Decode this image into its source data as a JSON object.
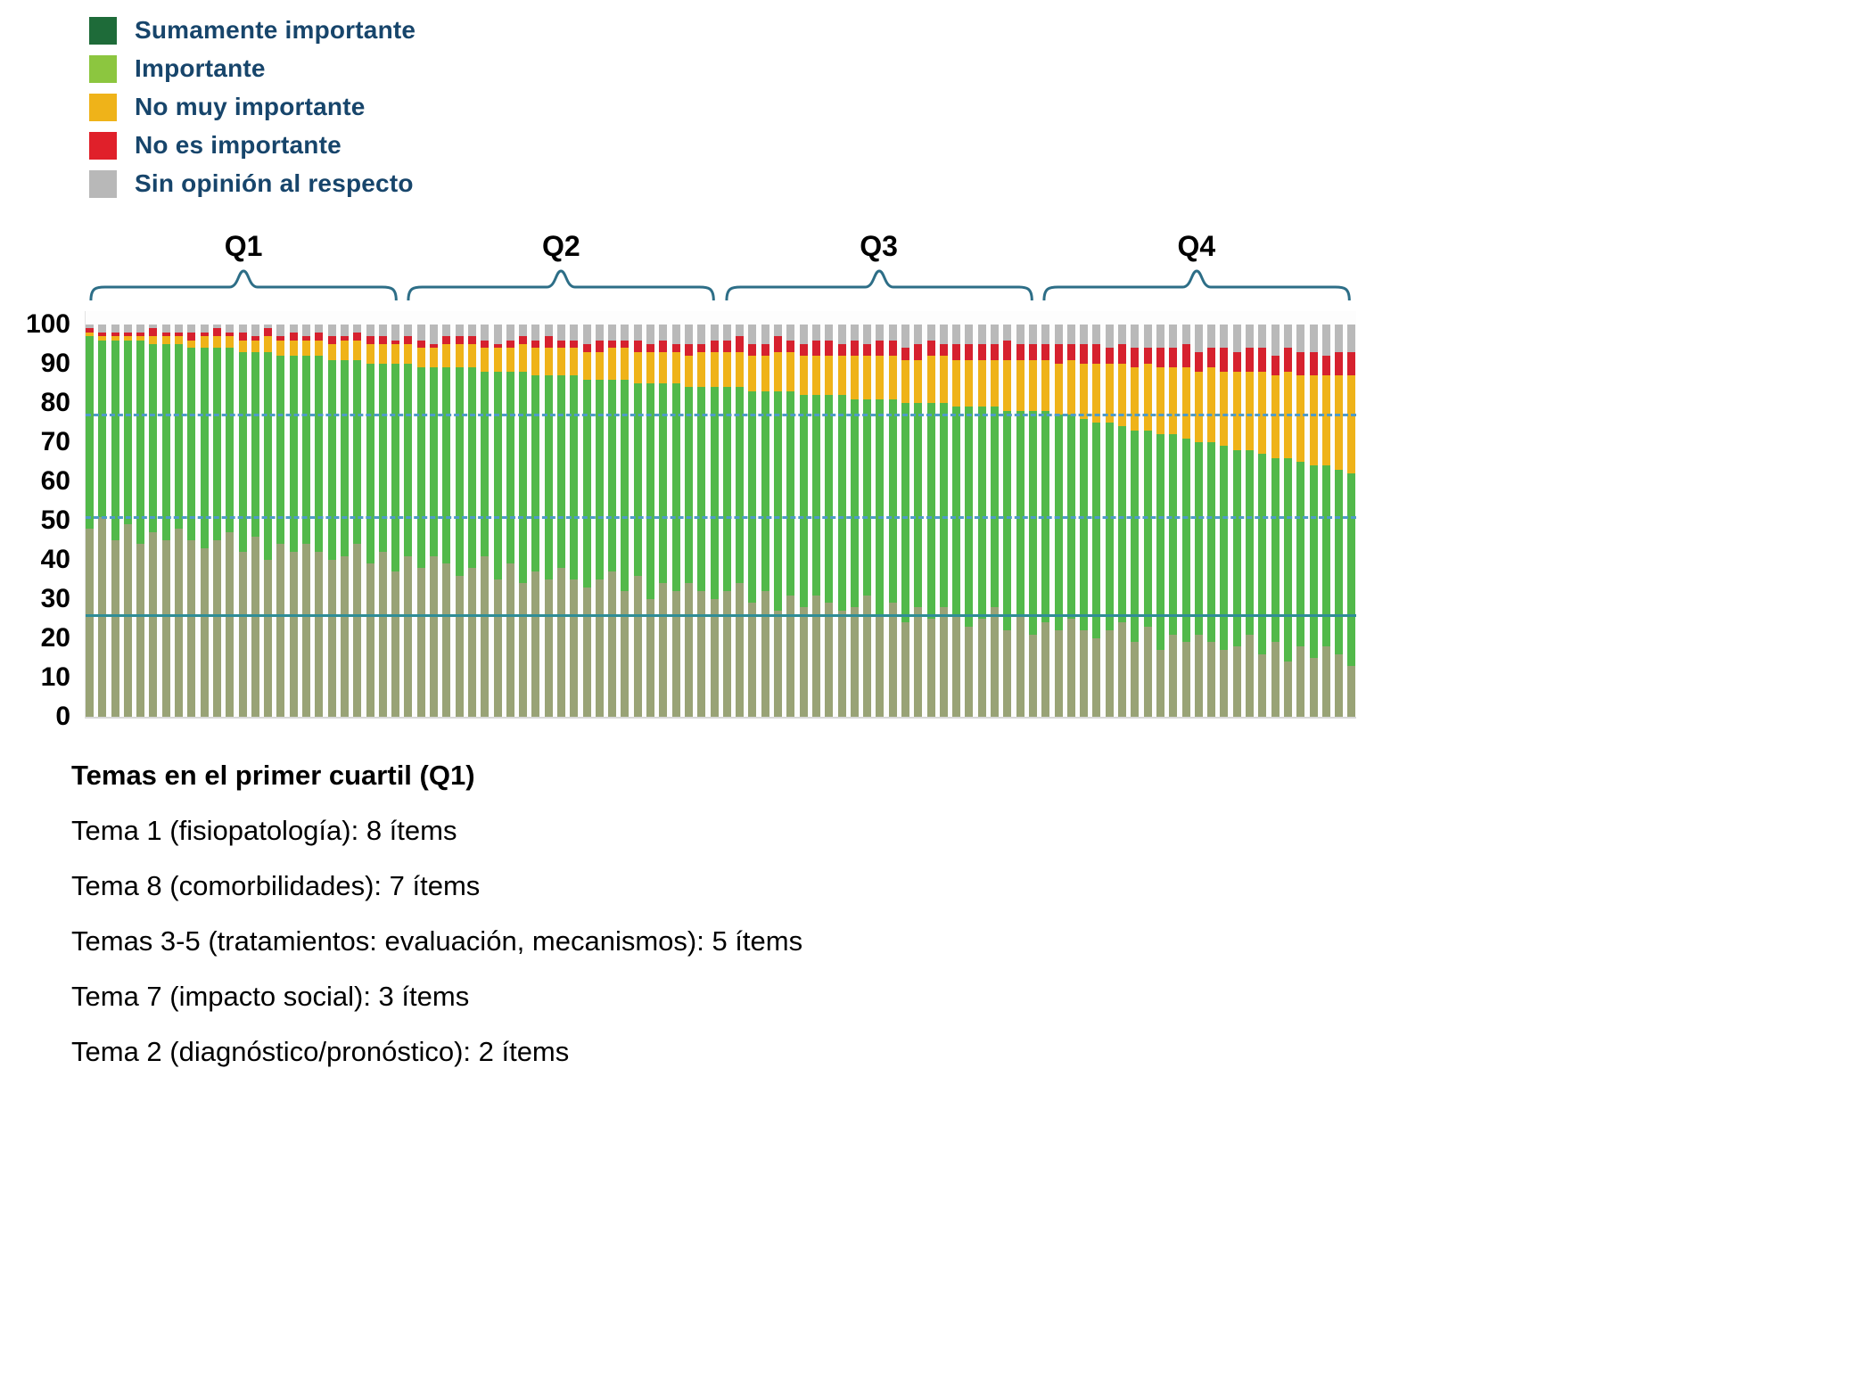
{
  "colors": {
    "legend_text": "#17456b",
    "bracket": "#2d6e87",
    "dashed_line": "#4f9bc8",
    "solid_line": "#2f8d96",
    "axis_text": "#000000"
  },
  "legend": {
    "items": [
      {
        "label": "Sumamente importante",
        "color": "#1e6b39"
      },
      {
        "label": "Importante",
        "color": "#8cc63f"
      },
      {
        "label": "No muy importante",
        "color": "#efb319"
      },
      {
        "label": "No es importante",
        "color": "#e0202a"
      },
      {
        "label": "Sin opinión al respecto",
        "color": "#b8b8b8"
      }
    ]
  },
  "chart_data": {
    "type": "bar",
    "stacked": true,
    "stack_total": 100,
    "n_items": 100,
    "items_per_quartile": 25,
    "quartiles": [
      {
        "label": "Q1"
      },
      {
        "label": "Q2"
      },
      {
        "label": "Q3"
      },
      {
        "label": "Q4"
      }
    ],
    "y_ticks": [
      0,
      10,
      20,
      30,
      40,
      50,
      60,
      70,
      80,
      90,
      100
    ],
    "ylim": [
      0,
      100
    ],
    "xlabel": "",
    "ylabel": "",
    "legend_position": "top-left",
    "reference_lines": [
      {
        "value": 76.5,
        "style": "dashed",
        "color": "#4f9bc8"
      },
      {
        "value": 50.5,
        "style": "dashed",
        "color": "#4f9bc8"
      },
      {
        "value": 25.5,
        "style": "solid",
        "color": "#2f8d96"
      }
    ],
    "series": [
      {
        "name": "Sumamente importante",
        "color": "#99a376",
        "values": [
          48,
          51,
          45,
          49,
          44,
          47,
          45,
          48,
          45,
          43,
          45,
          47,
          42,
          46,
          40,
          44,
          42,
          44,
          42,
          40,
          41,
          44,
          39,
          42,
          37,
          41,
          38,
          41,
          39,
          36,
          38,
          41,
          35,
          39,
          34,
          37,
          35,
          38,
          35,
          33,
          35,
          37,
          32,
          36,
          30,
          34,
          32,
          34,
          32,
          30,
          32,
          34,
          29,
          32,
          27,
          31,
          28,
          31,
          29,
          27,
          28,
          31,
          26,
          29,
          24,
          28,
          25,
          28,
          26,
          23,
          25,
          28,
          22,
          26,
          21,
          24,
          22,
          25,
          22,
          20,
          22,
          24,
          19,
          23,
          17,
          21,
          19,
          21,
          19,
          17,
          18,
          21,
          16,
          19,
          14,
          18,
          15,
          18,
          16,
          13
        ]
      },
      {
        "name": "Importante",
        "color": "#52b94a",
        "values": [
          49,
          45,
          51,
          47,
          52,
          48,
          50,
          47,
          49,
          51,
          49,
          47,
          51,
          47,
          53,
          48,
          50,
          48,
          50,
          51,
          50,
          47,
          51,
          48,
          53,
          49,
          51,
          48,
          50,
          53,
          51,
          47,
          53,
          49,
          54,
          50,
          52,
          49,
          52,
          53,
          51,
          49,
          54,
          49,
          55,
          51,
          53,
          50,
          52,
          54,
          52,
          50,
          54,
          51,
          56,
          52,
          54,
          51,
          53,
          55,
          53,
          50,
          55,
          52,
          56,
          52,
          55,
          52,
          53,
          56,
          54,
          51,
          56,
          52,
          57,
          54,
          55,
          52,
          54,
          55,
          53,
          50,
          54,
          50,
          55,
          51,
          52,
          49,
          51,
          52,
          50,
          47,
          51,
          47,
          52,
          47,
          49,
          46,
          47,
          49
        ]
      },
      {
        "name": "No muy importante",
        "color": "#efb319",
        "values": [
          1,
          1,
          1,
          1,
          1,
          2,
          2,
          2,
          2,
          3,
          3,
          3,
          3,
          3,
          4,
          4,
          4,
          4,
          4,
          4,
          5,
          5,
          5,
          5,
          5,
          5,
          5,
          5,
          6,
          6,
          6,
          6,
          6,
          6,
          7,
          7,
          7,
          7,
          7,
          7,
          7,
          8,
          8,
          8,
          8,
          8,
          8,
          8,
          9,
          9,
          9,
          9,
          9,
          9,
          10,
          10,
          10,
          10,
          10,
          10,
          11,
          11,
          11,
          11,
          11,
          11,
          12,
          12,
          12,
          12,
          12,
          12,
          13,
          13,
          13,
          13,
          13,
          14,
          14,
          15,
          15,
          16,
          16,
          17,
          17,
          17,
          18,
          18,
          19,
          19,
          20,
          20,
          21,
          21,
          22,
          22,
          23,
          23,
          24,
          25
        ]
      },
      {
        "name": "No es importante",
        "color": "#d6212e",
        "values": [
          1,
          1,
          1,
          1,
          1,
          2,
          1,
          1,
          2,
          1,
          2,
          1,
          2,
          1,
          2,
          1,
          2,
          1,
          2,
          2,
          1,
          2,
          2,
          2,
          1,
          2,
          2,
          1,
          2,
          2,
          2,
          2,
          1,
          2,
          2,
          2,
          3,
          2,
          2,
          2,
          3,
          2,
          2,
          3,
          2,
          3,
          2,
          3,
          2,
          3,
          3,
          4,
          3,
          3,
          4,
          3,
          3,
          4,
          4,
          3,
          4,
          3,
          4,
          4,
          3,
          4,
          4,
          3,
          4,
          4,
          4,
          4,
          5,
          4,
          4,
          4,
          5,
          4,
          5,
          5,
          4,
          5,
          5,
          4,
          5,
          5,
          6,
          5,
          5,
          6,
          5,
          6,
          6,
          5,
          6,
          6,
          6,
          5,
          6,
          6
        ]
      },
      {
        "name": "Sin opinión al respecto",
        "color": "#b9b9b9",
        "values": [
          1,
          2,
          2,
          2,
          2,
          1,
          2,
          2,
          2,
          2,
          1,
          2,
          2,
          3,
          1,
          3,
          2,
          3,
          2,
          3,
          3,
          2,
          3,
          3,
          4,
          3,
          4,
          5,
          3,
          3,
          3,
          4,
          5,
          4,
          3,
          4,
          3,
          4,
          4,
          5,
          4,
          4,
          4,
          4,
          5,
          4,
          5,
          5,
          5,
          4,
          4,
          3,
          5,
          5,
          3,
          4,
          5,
          4,
          4,
          5,
          4,
          5,
          4,
          4,
          6,
          5,
          4,
          5,
          5,
          5,
          5,
          5,
          4,
          5,
          5,
          5,
          5,
          5,
          5,
          5,
          6,
          5,
          6,
          6,
          6,
          6,
          5,
          7,
          6,
          6,
          7,
          6,
          6,
          8,
          6,
          7,
          7,
          8,
          7,
          7
        ]
      }
    ]
  },
  "footer": {
    "title": "Temas en el primer cuartil (Q1)",
    "lines": [
      "Tema 1 (fisiopatología): 8 ítems",
      "Tema 8 (comorbilidades): 7 ítems",
      "Temas 3-5 (tratamientos: evaluación, mecanismos): 5 ítems",
      "Tema 7 (impacto social): 3 ítems",
      "Tema 2 (diagnóstico/pronóstico): 2 ítems"
    ]
  }
}
